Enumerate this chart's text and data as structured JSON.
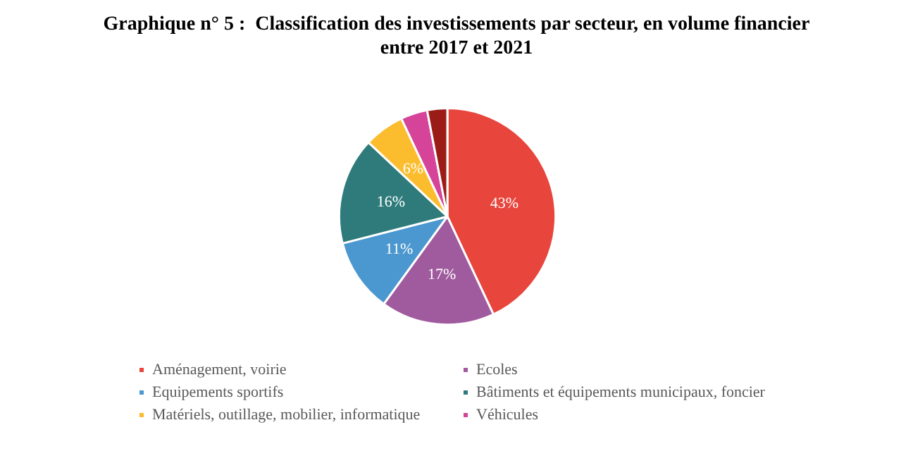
{
  "chart_data": {
    "type": "pie",
    "title": "Graphique n° 5 :  Classification des investissements par secteur, en volume financier\nentre 2017 et 2021",
    "categories": [
      "Aménagement, voirie",
      "Ecoles",
      "Equipements sportifs",
      "Bâtiments et équipements municipaux, foncier",
      "Matériels, outillage, mobilier, informatique",
      "Véhicules",
      null
    ],
    "values": [
      43,
      17,
      11,
      16,
      6,
      4,
      3
    ],
    "colors": [
      "#e8453c",
      "#a05a9e",
      "#4b97cf",
      "#2f7b7b",
      "#fbbc2d",
      "#d6449a",
      "#9b1c17"
    ],
    "value_labels": [
      "43%",
      "17%",
      "11%",
      "16%",
      "6%",
      null,
      null
    ],
    "legend": "bottom"
  }
}
